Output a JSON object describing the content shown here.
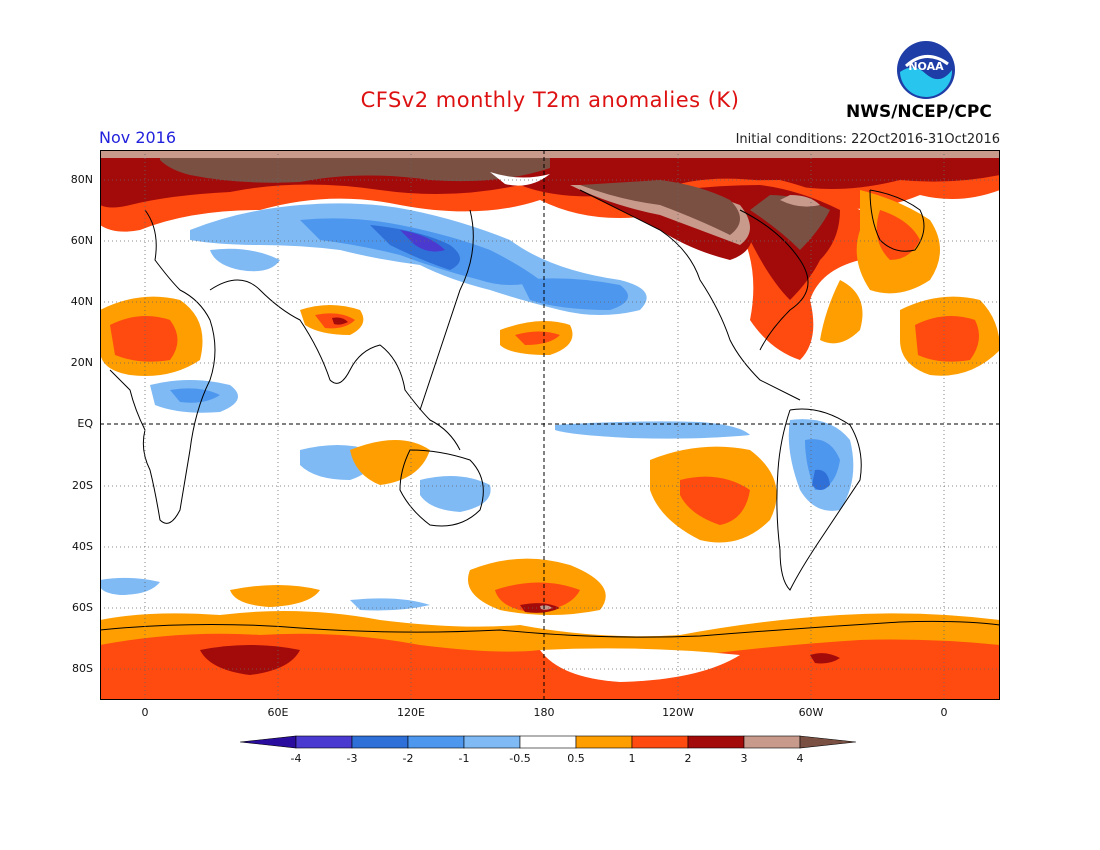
{
  "title": "CFSv2 monthly T2m anomalies (K)",
  "period": "Nov 2016",
  "initial_conditions": "Initial conditions: 22Oct2016-31Oct2016",
  "agency": "NWS/NCEP/CPC",
  "logo_text": "NOAA",
  "lat_labels": [
    "80N",
    "60N",
    "40N",
    "20N",
    "EQ",
    "20S",
    "40S",
    "60S",
    "80S"
  ],
  "lon_labels": [
    "0",
    "60E",
    "120E",
    "180",
    "120W",
    "60W",
    "0"
  ],
  "colorbar": {
    "labels": [
      "-4",
      "-3",
      "-2",
      "-1",
      "-0.5",
      "0.5",
      "1",
      "2",
      "3",
      "4"
    ],
    "colors": [
      "#2a0d9e",
      "#4a3ad0",
      "#2f6fd8",
      "#4d97ee",
      "#7fbaf5",
      "#ffffff",
      "#ff9e00",
      "#ff4a10",
      "#a30a0a",
      "#c89a8c",
      "#7a5043"
    ]
  },
  "colors": {
    "title": "#dd1111",
    "period": "#2222dd",
    "cold_light": "#7fbaf5",
    "cold_mid": "#4d97ee",
    "cold_strong": "#2f6fd8",
    "cold_extreme": "#4a3ad0",
    "warm_light": "#ff9e00",
    "warm_mid": "#ff4a10",
    "warm_strong": "#a30a0a",
    "warm_extreme": "#c89a8c",
    "warm_max": "#7a5043"
  }
}
